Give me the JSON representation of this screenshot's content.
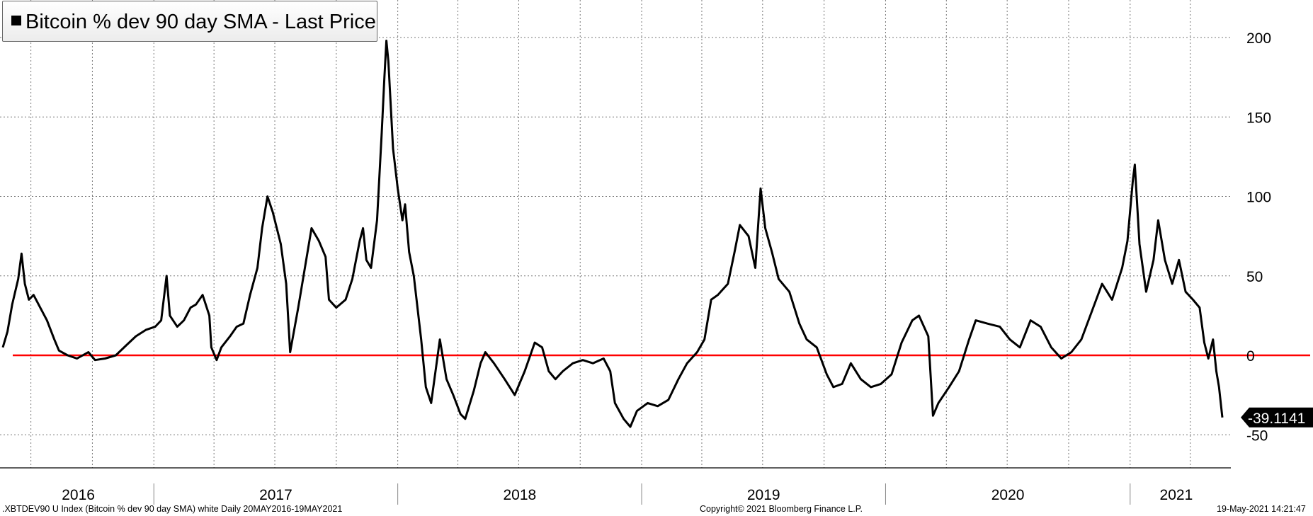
{
  "legend": {
    "label": "Bitcoin % dev 90 day SMA - Last Price",
    "swatch_color": "#000000"
  },
  "footer": {
    "left": ".XBTDEV90 U Index (Bitcoin % dev 90 day SMA) white  Daily 20MAY2016-19MAY2021",
    "center": "Copyright© 2021 Bloomberg Finance L.P.",
    "right": "19-May-2021 14:21:47"
  },
  "last_value_label": "-39.1141",
  "chart_data": {
    "type": "line",
    "title": "Bitcoin % dev 90 day SMA - Last Price",
    "x_range": [
      "2016-05-20",
      "2021-05-19"
    ],
    "ylim": [
      -70,
      210
    ],
    "y_ticks": [
      -50,
      0,
      50,
      100,
      150,
      200
    ],
    "x_year_labels": [
      "2016",
      "2017",
      "2018",
      "2019",
      "2020",
      "2021"
    ],
    "grid": true,
    "reference_line": {
      "y": 0,
      "color": "#ff0000"
    },
    "series": [
      {
        "name": "Bitcoin % dev 90 day SMA - Last Price",
        "color": "#000000",
        "points": [
          [
            "2016-05-20",
            5
          ],
          [
            "2016-05-27",
            15
          ],
          [
            "2016-06-03",
            32
          ],
          [
            "2016-06-12",
            48
          ],
          [
            "2016-06-17",
            64
          ],
          [
            "2016-06-22",
            45
          ],
          [
            "2016-06-28",
            35
          ],
          [
            "2016-07-05",
            38
          ],
          [
            "2016-07-15",
            30
          ],
          [
            "2016-07-25",
            22
          ],
          [
            "2016-08-05",
            10
          ],
          [
            "2016-08-12",
            3
          ],
          [
            "2016-08-25",
            0
          ],
          [
            "2016-09-08",
            -2
          ],
          [
            "2016-09-25",
            2
          ],
          [
            "2016-10-05",
            -3
          ],
          [
            "2016-10-20",
            -2
          ],
          [
            "2016-11-05",
            0
          ],
          [
            "2016-11-20",
            6
          ],
          [
            "2016-12-05",
            12
          ],
          [
            "2016-12-20",
            16
          ],
          [
            "2017-01-03",
            18
          ],
          [
            "2017-01-12",
            22
          ],
          [
            "2017-01-20",
            50
          ],
          [
            "2017-01-25",
            25
          ],
          [
            "2017-02-05",
            18
          ],
          [
            "2017-02-15",
            22
          ],
          [
            "2017-02-25",
            30
          ],
          [
            "2017-03-05",
            32
          ],
          [
            "2017-03-15",
            38
          ],
          [
            "2017-03-25",
            25
          ],
          [
            "2017-03-28",
            5
          ],
          [
            "2017-04-05",
            -3
          ],
          [
            "2017-04-12",
            5
          ],
          [
            "2017-04-25",
            12
          ],
          [
            "2017-05-05",
            18
          ],
          [
            "2017-05-15",
            20
          ],
          [
            "2017-05-25",
            38
          ],
          [
            "2017-06-05",
            55
          ],
          [
            "2017-06-12",
            80
          ],
          [
            "2017-06-20",
            100
          ],
          [
            "2017-06-28",
            90
          ],
          [
            "2017-07-10",
            70
          ],
          [
            "2017-07-18",
            45
          ],
          [
            "2017-07-24",
            2
          ],
          [
            "2017-08-05",
            30
          ],
          [
            "2017-08-15",
            55
          ],
          [
            "2017-08-25",
            80
          ],
          [
            "2017-09-05",
            72
          ],
          [
            "2017-09-15",
            62
          ],
          [
            "2017-09-20",
            35
          ],
          [
            "2017-10-01",
            30
          ],
          [
            "2017-10-15",
            35
          ],
          [
            "2017-10-25",
            48
          ],
          [
            "2017-11-05",
            72
          ],
          [
            "2017-11-10",
            80
          ],
          [
            "2017-11-15",
            60
          ],
          [
            "2017-11-22",
            55
          ],
          [
            "2017-12-01",
            85
          ],
          [
            "2017-12-08",
            140
          ],
          [
            "2017-12-12",
            175
          ],
          [
            "2017-12-15",
            198
          ],
          [
            "2017-12-18",
            185
          ],
          [
            "2017-12-25",
            130
          ],
          [
            "2018-01-01",
            105
          ],
          [
            "2018-01-08",
            85
          ],
          [
            "2018-01-12",
            95
          ],
          [
            "2018-01-18",
            65
          ],
          [
            "2018-01-25",
            50
          ],
          [
            "2018-02-05",
            10
          ],
          [
            "2018-02-12",
            -20
          ],
          [
            "2018-02-20",
            -30
          ],
          [
            "2018-03-05",
            10
          ],
          [
            "2018-03-15",
            -15
          ],
          [
            "2018-03-25",
            -25
          ],
          [
            "2018-04-05",
            -37
          ],
          [
            "2018-04-12",
            -40
          ],
          [
            "2018-04-25",
            -22
          ],
          [
            "2018-05-05",
            -5
          ],
          [
            "2018-05-12",
            2
          ],
          [
            "2018-05-25",
            -5
          ],
          [
            "2018-06-10",
            -15
          ],
          [
            "2018-06-25",
            -25
          ],
          [
            "2018-07-10",
            -10
          ],
          [
            "2018-07-25",
            8
          ],
          [
            "2018-08-05",
            5
          ],
          [
            "2018-08-15",
            -10
          ],
          [
            "2018-08-25",
            -15
          ],
          [
            "2018-09-05",
            -10
          ],
          [
            "2018-09-20",
            -5
          ],
          [
            "2018-10-05",
            -3
          ],
          [
            "2018-10-20",
            -5
          ],
          [
            "2018-11-05",
            -2
          ],
          [
            "2018-11-15",
            -10
          ],
          [
            "2018-11-22",
            -30
          ],
          [
            "2018-12-05",
            -40
          ],
          [
            "2018-12-15",
            -45
          ],
          [
            "2018-12-25",
            -35
          ],
          [
            "2019-01-10",
            -30
          ],
          [
            "2019-01-25",
            -32
          ],
          [
            "2019-02-10",
            -28
          ],
          [
            "2019-02-25",
            -15
          ],
          [
            "2019-03-10",
            -5
          ],
          [
            "2019-03-25",
            2
          ],
          [
            "2019-04-05",
            10
          ],
          [
            "2019-04-15",
            35
          ],
          [
            "2019-04-25",
            38
          ],
          [
            "2019-05-10",
            45
          ],
          [
            "2019-05-20",
            65
          ],
          [
            "2019-05-28",
            82
          ],
          [
            "2019-06-10",
            75
          ],
          [
            "2019-06-20",
            55
          ],
          [
            "2019-06-28",
            105
          ],
          [
            "2019-07-05",
            80
          ],
          [
            "2019-07-15",
            65
          ],
          [
            "2019-07-25",
            48
          ],
          [
            "2019-08-10",
            40
          ],
          [
            "2019-08-25",
            20
          ],
          [
            "2019-09-05",
            10
          ],
          [
            "2019-09-20",
            5
          ],
          [
            "2019-10-05",
            -12
          ],
          [
            "2019-10-15",
            -20
          ],
          [
            "2019-10-28",
            -18
          ],
          [
            "2019-11-10",
            -5
          ],
          [
            "2019-11-25",
            -15
          ],
          [
            "2019-12-10",
            -20
          ],
          [
            "2019-12-25",
            -18
          ],
          [
            "2020-01-10",
            -12
          ],
          [
            "2020-01-25",
            8
          ],
          [
            "2020-02-10",
            22
          ],
          [
            "2020-02-20",
            25
          ],
          [
            "2020-03-05",
            12
          ],
          [
            "2020-03-12",
            -38
          ],
          [
            "2020-03-20",
            -30
          ],
          [
            "2020-04-05",
            -20
          ],
          [
            "2020-04-20",
            -10
          ],
          [
            "2020-05-05",
            10
          ],
          [
            "2020-05-15",
            22
          ],
          [
            "2020-06-01",
            20
          ],
          [
            "2020-06-20",
            18
          ],
          [
            "2020-07-05",
            10
          ],
          [
            "2020-07-20",
            5
          ],
          [
            "2020-08-05",
            22
          ],
          [
            "2020-08-20",
            18
          ],
          [
            "2020-09-05",
            5
          ],
          [
            "2020-09-20",
            -2
          ],
          [
            "2020-10-05",
            2
          ],
          [
            "2020-10-20",
            10
          ],
          [
            "2020-11-05",
            28
          ],
          [
            "2020-11-20",
            45
          ],
          [
            "2020-12-05",
            35
          ],
          [
            "2020-12-20",
            55
          ],
          [
            "2020-12-28",
            72
          ],
          [
            "2021-01-05",
            110
          ],
          [
            "2021-01-08",
            120
          ],
          [
            "2021-01-15",
            70
          ],
          [
            "2021-01-25",
            40
          ],
          [
            "2021-02-05",
            60
          ],
          [
            "2021-02-12",
            85
          ],
          [
            "2021-02-22",
            60
          ],
          [
            "2021-03-05",
            45
          ],
          [
            "2021-03-15",
            60
          ],
          [
            "2021-03-25",
            40
          ],
          [
            "2021-04-05",
            35
          ],
          [
            "2021-04-15",
            30
          ],
          [
            "2021-04-22",
            8
          ],
          [
            "2021-04-28",
            -2
          ],
          [
            "2021-05-05",
            10
          ],
          [
            "2021-05-10",
            -10
          ],
          [
            "2021-05-14",
            -20
          ],
          [
            "2021-05-19",
            -39.1141
          ]
        ]
      }
    ]
  }
}
